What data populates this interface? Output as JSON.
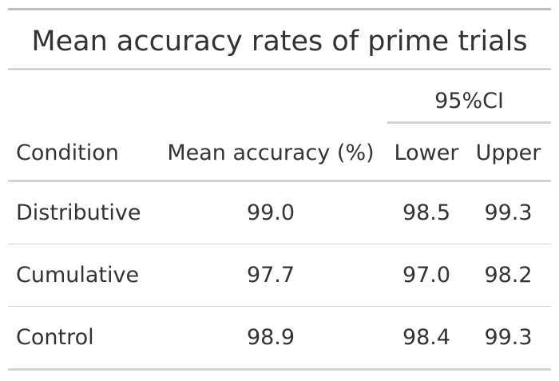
{
  "table": {
    "title": "Mean accuracy rates of prime trials",
    "spanner_label": "95%CI",
    "headers": {
      "condition": "Condition",
      "mean": "Mean accuracy (%)",
      "lower": "Lower",
      "upper": "Upper"
    },
    "rows": [
      {
        "condition": "Distributive",
        "mean": "99.0",
        "lower": "98.5",
        "upper": "99.3"
      },
      {
        "condition": "Cumulative",
        "mean": "97.7",
        "lower": "97.0",
        "upper": "98.2"
      },
      {
        "condition": "Control",
        "mean": "98.9",
        "lower": "98.4",
        "upper": "99.3"
      }
    ]
  }
}
